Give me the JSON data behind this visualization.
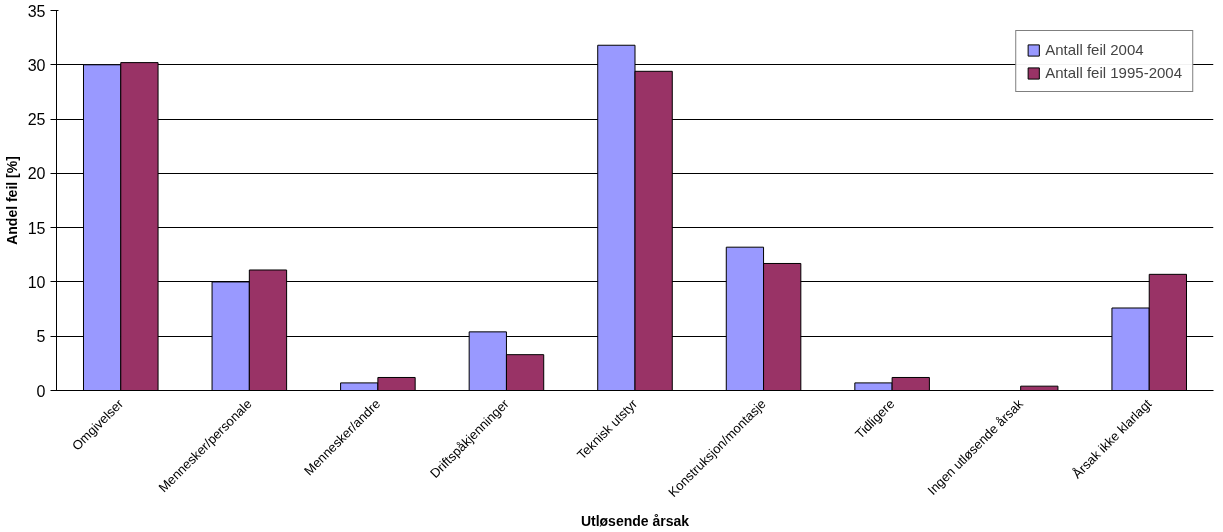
{
  "chart_data": {
    "type": "bar",
    "xlabel": "Utløsende årsak",
    "ylabel": "Andel feil [%]",
    "categories": [
      "Omgivelser",
      "Mennesker/personale",
      "Mennesker/andre",
      "Driftspåkjenninger",
      "Teknisk utstyr",
      "Konstruksjon/montasje",
      "Tidligere",
      "Ingen utløsende årsak",
      "Årsak ikke klarlagt"
    ],
    "series": [
      {
        "name": "Antall feil 2004",
        "color": "#9999ff",
        "values": [
          30.0,
          10.0,
          0.7,
          5.4,
          31.8,
          13.2,
          0.7,
          null,
          7.6
        ]
      },
      {
        "name": "Antall feil 1995-2004",
        "color": "#993366",
        "values": [
          30.2,
          11.1,
          1.2,
          3.3,
          29.4,
          11.7,
          1.2,
          0.4,
          10.7
        ]
      }
    ],
    "ylim": [
      0,
      35
    ],
    "yticks": [
      0,
      5,
      10,
      15,
      20,
      25,
      30,
      35
    ],
    "grid": "y",
    "legend": "top right"
  }
}
